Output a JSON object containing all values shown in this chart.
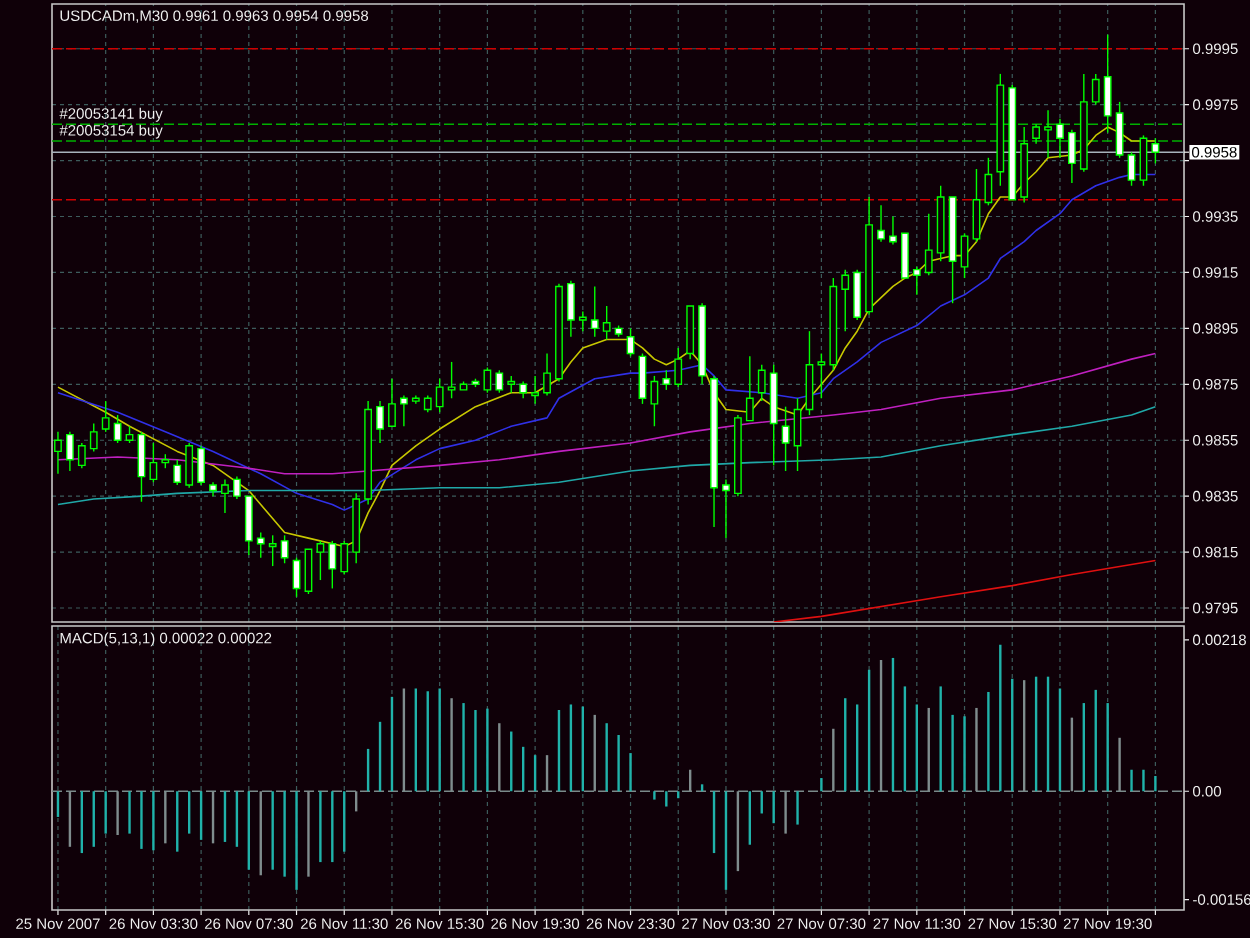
{
  "chart_data": [
    {
      "type": "candlestick",
      "title": "USDCADm,M30  0.9961 0.9963 0.9954 0.9958",
      "color": "#00ff00",
      "x": [
        "2007-11-25T23:30",
        "2007-11-26T00:00",
        "2007-11-26T00:30",
        "2007-11-26T01:00",
        "2007-11-26T01:30",
        "2007-11-26T02:00",
        "2007-11-26T02:30",
        "2007-11-26T03:00",
        "2007-11-26T03:30",
        "2007-11-26T04:00",
        "2007-11-26T04:30",
        "2007-11-26T05:00",
        "2007-11-26T05:30",
        "2007-11-26T06:00",
        "2007-11-26T06:30",
        "2007-11-26T07:00",
        "2007-11-26T07:30",
        "2007-11-26T08:00",
        "2007-11-26T08:30",
        "2007-11-26T09:00",
        "2007-11-26T09:30",
        "2007-11-26T10:00",
        "2007-11-26T10:30",
        "2007-11-26T11:00",
        "2007-11-26T11:30",
        "2007-11-26T12:00",
        "2007-11-26T12:30",
        "2007-11-26T13:00",
        "2007-11-26T13:30",
        "2007-11-26T14:00",
        "2007-11-26T14:30",
        "2007-11-26T15:00",
        "2007-11-26T15:30",
        "2007-11-26T16:00",
        "2007-11-26T16:30",
        "2007-11-26T17:00",
        "2007-11-26T17:30",
        "2007-11-26T18:00",
        "2007-11-26T18:30",
        "2007-11-26T19:00",
        "2007-11-26T19:30",
        "2007-11-26T20:00",
        "2007-11-26T20:30",
        "2007-11-26T21:00",
        "2007-11-26T21:30",
        "2007-11-26T22:00",
        "2007-11-26T22:30",
        "2007-11-26T23:00",
        "2007-11-26T23:30",
        "2007-11-27T00:00",
        "2007-11-27T00:30",
        "2007-11-27T01:00",
        "2007-11-27T01:30",
        "2007-11-27T02:00",
        "2007-11-27T02:30",
        "2007-11-27T03:00",
        "2007-11-27T03:30",
        "2007-11-27T04:00",
        "2007-11-27T04:30",
        "2007-11-27T05:00",
        "2007-11-27T05:30",
        "2007-11-27T06:00",
        "2007-11-27T06:30",
        "2007-11-27T07:00",
        "2007-11-27T07:30",
        "2007-11-27T08:00",
        "2007-11-27T08:30",
        "2007-11-27T09:00",
        "2007-11-27T09:30",
        "2007-11-27T10:00",
        "2007-11-27T10:30",
        "2007-11-27T11:00",
        "2007-11-27T11:30",
        "2007-11-27T12:00",
        "2007-11-27T12:30",
        "2007-11-27T13:00",
        "2007-11-27T13:30",
        "2007-11-27T14:00",
        "2007-11-27T14:30",
        "2007-11-27T15:00",
        "2007-11-27T15:30",
        "2007-11-27T16:00",
        "2007-11-27T16:30",
        "2007-11-27T17:00",
        "2007-11-27T17:30",
        "2007-11-27T18:00",
        "2007-11-27T18:30",
        "2007-11-27T19:00",
        "2007-11-27T19:30",
        "2007-11-27T20:00",
        "2007-11-27T20:30",
        "2007-11-27T21:00",
        "2007-11-27T21:30"
      ],
      "ohlc": [
        [
          0.9851,
          0.9858,
          0.9843,
          0.9855
        ],
        [
          0.9857,
          0.9858,
          0.9844,
          0.9848
        ],
        [
          0.9846,
          0.9854,
          0.9845,
          0.9853
        ],
        [
          0.9852,
          0.9861,
          0.9851,
          0.9858
        ],
        [
          0.9859,
          0.9869,
          0.9858,
          0.9863
        ],
        [
          0.9861,
          0.9864,
          0.9854,
          0.9855
        ],
        [
          0.9855,
          0.986,
          0.9854,
          0.9857
        ],
        [
          0.9857,
          0.9858,
          0.9833,
          0.9842
        ],
        [
          0.9841,
          0.9854,
          0.984,
          0.9847
        ],
        [
          0.9847,
          0.985,
          0.9845,
          0.9848
        ],
        [
          0.9846,
          0.9848,
          0.9839,
          0.984
        ],
        [
          0.9839,
          0.9854,
          0.9838,
          0.9853
        ],
        [
          0.9852,
          0.9853,
          0.9839,
          0.984
        ],
        [
          0.9839,
          0.984,
          0.9835,
          0.9837
        ],
        [
          0.9836,
          0.9841,
          0.9829,
          0.9839
        ],
        [
          0.9841,
          0.9842,
          0.9834,
          0.9835
        ],
        [
          0.9835,
          0.9835,
          0.9814,
          0.9819
        ],
        [
          0.982,
          0.9822,
          0.9813,
          0.9818
        ],
        [
          0.9817,
          0.9821,
          0.981,
          0.9818
        ],
        [
          0.9819,
          0.9821,
          0.9811,
          0.9813
        ],
        [
          0.9812,
          0.9813,
          0.9799,
          0.9802
        ],
        [
          0.9801,
          0.9816,
          0.98,
          0.9816
        ],
        [
          0.9815,
          0.9819,
          0.9805,
          0.9818
        ],
        [
          0.9818,
          0.9819,
          0.9802,
          0.9809
        ],
        [
          0.9808,
          0.9819,
          0.9807,
          0.9818
        ],
        [
          0.9815,
          0.9836,
          0.9811,
          0.9834
        ],
        [
          0.9834,
          0.9869,
          0.9832,
          0.9866
        ],
        [
          0.9867,
          0.9869,
          0.9854,
          0.9859
        ],
        [
          0.986,
          0.9877,
          0.986,
          0.9868
        ],
        [
          0.987,
          0.9871,
          0.986,
          0.9868
        ],
        [
          0.9869,
          0.9871,
          0.9868,
          0.987
        ],
        [
          0.9866,
          0.9871,
          0.9865,
          0.987
        ],
        [
          0.9867,
          0.9877,
          0.9865,
          0.9874
        ],
        [
          0.9873,
          0.9883,
          0.987,
          0.9874
        ],
        [
          0.9873,
          0.9876,
          0.9873,
          0.9875
        ],
        [
          0.9876,
          0.9877,
          0.9874,
          0.9875
        ],
        [
          0.9873,
          0.9881,
          0.9872,
          0.988
        ],
        [
          0.9879,
          0.988,
          0.9872,
          0.9873
        ],
        [
          0.9875,
          0.9878,
          0.9872,
          0.9876
        ],
        [
          0.9875,
          0.9876,
          0.987,
          0.9872
        ],
        [
          0.9871,
          0.9878,
          0.9868,
          0.9872
        ],
        [
          0.9872,
          0.9886,
          0.9871,
          0.9879
        ],
        [
          0.9877,
          0.9911,
          0.9876,
          0.991
        ],
        [
          0.9911,
          0.9912,
          0.9892,
          0.9898
        ],
        [
          0.9898,
          0.9901,
          0.9894,
          0.9899
        ],
        [
          0.9898,
          0.991,
          0.9892,
          0.9895
        ],
        [
          0.9894,
          0.9903,
          0.9891,
          0.9897
        ],
        [
          0.9895,
          0.9896,
          0.9892,
          0.9893
        ],
        [
          0.9892,
          0.9895,
          0.9885,
          0.9886
        ],
        [
          0.9885,
          0.9886,
          0.9868,
          0.987
        ],
        [
          0.9868,
          0.9878,
          0.986,
          0.9876
        ],
        [
          0.9877,
          0.988,
          0.9873,
          0.9875
        ],
        [
          0.9875,
          0.9888,
          0.9874,
          0.9884
        ],
        [
          0.9886,
          0.9903,
          0.9884,
          0.9903
        ],
        [
          0.9903,
          0.9904,
          0.9875,
          0.9878
        ],
        [
          0.9877,
          0.9878,
          0.9824,
          0.9838
        ],
        [
          0.9839,
          0.9841,
          0.982,
          0.9837
        ],
        [
          0.9836,
          0.9864,
          0.9835,
          0.9863
        ],
        [
          0.9862,
          0.9885,
          0.9862,
          0.987
        ],
        [
          0.9872,
          0.9882,
          0.9869,
          0.988
        ],
        [
          0.9879,
          0.9882,
          0.9846,
          0.9861
        ],
        [
          0.986,
          0.9867,
          0.9844,
          0.9854
        ],
        [
          0.9853,
          0.987,
          0.9844,
          0.9866
        ],
        [
          0.9866,
          0.9894,
          0.9864,
          0.9882
        ],
        [
          0.9882,
          0.9886,
          0.987,
          0.9883
        ],
        [
          0.9882,
          0.9913,
          0.988,
          0.991
        ],
        [
          0.9909,
          0.9916,
          0.9894,
          0.9914
        ],
        [
          0.9915,
          0.9916,
          0.9898,
          0.9899
        ],
        [
          0.9901,
          0.9942,
          0.99,
          0.9932
        ],
        [
          0.993,
          0.9939,
          0.9926,
          0.9927
        ],
        [
          0.9928,
          0.9935,
          0.9925,
          0.9926
        ],
        [
          0.9929,
          0.9929,
          0.9913,
          0.9913
        ],
        [
          0.9916,
          0.9917,
          0.9907,
          0.9914
        ],
        [
          0.9915,
          0.9936,
          0.9914,
          0.9923
        ],
        [
          0.9922,
          0.9946,
          0.9919,
          0.9942
        ],
        [
          0.9942,
          0.9942,
          0.9904,
          0.9919
        ],
        [
          0.9917,
          0.9929,
          0.9913,
          0.9928
        ],
        [
          0.9927,
          0.9952,
          0.9926,
          0.9941
        ],
        [
          0.994,
          0.9956,
          0.9939,
          0.995
        ],
        [
          0.9951,
          0.9986,
          0.9946,
          0.9982
        ],
        [
          0.9981,
          0.9982,
          0.9941,
          0.9941
        ],
        [
          0.9942,
          0.9967,
          0.994,
          0.9961
        ],
        [
          0.9963,
          0.9968,
          0.9961,
          0.9967
        ],
        [
          0.9966,
          0.9973,
          0.9956,
          0.9967
        ],
        [
          0.9968,
          0.997,
          0.9956,
          0.9963
        ],
        [
          0.9965,
          0.9966,
          0.9947,
          0.9954
        ],
        [
          0.9952,
          0.9986,
          0.9951,
          0.9976
        ],
        [
          0.9976,
          0.9986,
          0.9975,
          0.9984
        ],
        [
          0.9985,
          1.0,
          0.9965,
          0.9971
        ],
        [
          0.9972,
          0.9976,
          0.9956,
          0.9957
        ],
        [
          0.9957,
          0.9958,
          0.9946,
          0.9948
        ],
        [
          0.9948,
          0.9964,
          0.9946,
          0.9963
        ],
        [
          0.9961,
          0.9963,
          0.9954,
          0.9958
        ]
      ],
      "series": [
        {
          "type": "line",
          "color": "#c8c800",
          "x": [
            "2007-11-25T23:30",
            "2007-11-26T01:30",
            "2007-11-26T02:30",
            "2007-11-26T04:30",
            "2007-11-26T06:00",
            "2007-11-26T07:30",
            "2007-11-26T08:30",
            "2007-11-26T09:00",
            "2007-11-26T10:00",
            "2007-11-26T11:30",
            "2007-11-26T12:00",
            "2007-11-26T12:30",
            "2007-11-26T13:00",
            "2007-11-26T13:30",
            "2007-11-26T14:30",
            "2007-11-26T15:30",
            "2007-11-26T17:00",
            "2007-11-26T18:30",
            "2007-11-26T19:30",
            "2007-11-26T20:30",
            "2007-11-26T21:00",
            "2007-11-26T21:30",
            "2007-11-26T22:30",
            "2007-11-26T23:30",
            "2007-11-27T00:00",
            "2007-11-27T00:30",
            "2007-11-27T01:00",
            "2007-11-27T01:30",
            "2007-11-27T02:00",
            "2007-11-27T02:30",
            "2007-11-27T03:00",
            "2007-11-27T03:30",
            "2007-11-27T04:30",
            "2007-11-27T05:00",
            "2007-11-27T05:30",
            "2007-11-27T06:30",
            "2007-11-27T07:00",
            "2007-11-27T08:00",
            "2007-11-27T08:30",
            "2007-11-27T09:00",
            "2007-11-27T09:30",
            "2007-11-27T10:30",
            "2007-11-27T11:00",
            "2007-11-27T11:30",
            "2007-11-27T12:00",
            "2007-11-27T13:00",
            "2007-11-27T13:30",
            "2007-11-27T14:00",
            "2007-11-27T14:30",
            "2007-11-27T15:00",
            "2007-11-27T15:30",
            "2007-11-27T16:00",
            "2007-11-27T16:30",
            "2007-11-27T17:00",
            "2007-11-27T18:00",
            "2007-11-27T18:30",
            "2007-11-27T19:00",
            "2007-11-27T19:30",
            "2007-11-27T20:00",
            "2007-11-27T20:30",
            "2007-11-27T21:00",
            "2007-11-27T21:30"
          ],
          "values": [
            0.9874,
            0.9865,
            0.986,
            0.9851,
            0.9846,
            0.9837,
            0.9827,
            0.9822,
            0.982,
            0.9817,
            0.9819,
            0.9829,
            0.9837,
            0.9846,
            0.9853,
            0.9859,
            0.9867,
            0.9872,
            0.9872,
            0.9877,
            0.9883,
            0.9888,
            0.9891,
            0.9891,
            0.9888,
            0.9884,
            0.9882,
            0.9884,
            0.9887,
            0.9882,
            0.9872,
            0.9866,
            0.9865,
            0.987,
            0.9867,
            0.9864,
            0.987,
            0.988,
            0.9888,
            0.9894,
            0.9902,
            0.991,
            0.9913,
            0.9915,
            0.9919,
            0.9921,
            0.9921,
            0.9926,
            0.9936,
            0.9942,
            0.9942,
            0.9947,
            0.9951,
            0.9956,
            0.9957,
            0.9959,
            0.9964,
            0.9967,
            0.9965,
            0.9962,
            0.9962,
            0.9962
          ]
        },
        {
          "type": "line",
          "color": "#3030e8",
          "x": [
            "2007-11-25T23:30",
            "2007-11-26T02:00",
            "2007-11-26T04:00",
            "2007-11-26T06:00",
            "2007-11-26T08:00",
            "2007-11-26T09:30",
            "2007-11-26T11:00",
            "2007-11-26T11:30",
            "2007-11-26T12:30",
            "2007-11-26T13:00",
            "2007-11-26T14:30",
            "2007-11-26T15:30",
            "2007-11-26T17:00",
            "2007-11-26T18:30",
            "2007-11-26T20:00",
            "2007-11-26T20:30",
            "2007-11-26T22:00",
            "2007-11-26T23:30",
            "2007-11-27T00:00",
            "2007-11-27T01:30",
            "2007-11-27T02:30",
            "2007-11-27T03:00",
            "2007-11-27T03:30",
            "2007-11-27T05:00",
            "2007-11-27T06:30",
            "2007-11-27T07:30",
            "2007-11-27T08:00",
            "2007-11-27T09:00",
            "2007-11-27T10:00",
            "2007-11-27T11:30",
            "2007-11-27T12:30",
            "2007-11-27T13:30",
            "2007-11-27T14:30",
            "2007-11-27T15:00",
            "2007-11-27T16:00",
            "2007-11-27T16:30",
            "2007-11-27T17:30",
            "2007-11-27T18:00",
            "2007-11-27T19:00",
            "2007-11-27T20:00",
            "2007-11-27T20:30",
            "2007-11-27T21:30"
          ],
          "values": [
            0.9872,
            0.9865,
            0.9858,
            0.9851,
            0.9843,
            0.9836,
            0.9832,
            0.983,
            0.9834,
            0.984,
            0.9848,
            0.9852,
            0.9855,
            0.986,
            0.9863,
            0.987,
            0.9877,
            0.9879,
            0.9879,
            0.988,
            0.9882,
            0.9878,
            0.9873,
            0.9872,
            0.987,
            0.9872,
            0.9877,
            0.9883,
            0.989,
            0.9896,
            0.9903,
            0.9907,
            0.9913,
            0.992,
            0.9926,
            0.993,
            0.9936,
            0.9941,
            0.9946,
            0.9949,
            0.995,
            0.995
          ]
        },
        {
          "type": "line",
          "color": "#c020c0",
          "x": [
            "2007-11-25T23:30",
            "2007-11-26T02:00",
            "2007-11-26T04:30",
            "2007-11-26T07:30",
            "2007-11-26T09:00",
            "2007-11-26T11:00",
            "2007-11-26T12:30",
            "2007-11-26T15:30",
            "2007-11-26T18:00",
            "2007-11-26T20:30",
            "2007-11-26T23:30",
            "2007-11-27T02:00",
            "2007-11-27T04:30",
            "2007-11-27T08:00",
            "2007-11-27T10:00",
            "2007-11-27T12:30",
            "2007-11-27T15:30",
            "2007-11-27T18:00",
            "2007-11-27T20:30",
            "2007-11-27T21:30"
          ],
          "values": [
            0.9848,
            0.9849,
            0.9848,
            0.9845,
            0.9843,
            0.9843,
            0.9844,
            0.9846,
            0.9848,
            0.9851,
            0.9854,
            0.9858,
            0.9861,
            0.9864,
            0.9866,
            0.987,
            0.9873,
            0.9878,
            0.9884,
            0.9886
          ]
        },
        {
          "type": "line",
          "color": "#20a8a8",
          "x": [
            "2007-11-25T23:30",
            "2007-11-26T01:00",
            "2007-11-26T03:00",
            "2007-11-26T04:30",
            "2007-11-26T07:30",
            "2007-11-26T12:30",
            "2007-11-26T15:30",
            "2007-11-26T18:00",
            "2007-11-26T20:30",
            "2007-11-26T23:30",
            "2007-11-27T02:00",
            "2007-11-27T04:30",
            "2007-11-27T08:00",
            "2007-11-27T10:00",
            "2007-11-27T12:30",
            "2007-11-27T15:30",
            "2007-11-27T18:00",
            "2007-11-27T20:30",
            "2007-11-27T21:30"
          ],
          "values": [
            0.9832,
            0.9834,
            0.9835,
            0.9836,
            0.9837,
            0.9837,
            0.9838,
            0.9838,
            0.984,
            0.9844,
            0.9846,
            0.9847,
            0.9848,
            0.9849,
            0.9853,
            0.9857,
            0.986,
            0.9864,
            0.9867
          ]
        },
        {
          "type": "line",
          "color": "#e01010",
          "x": [
            "2007-11-27T05:30",
            "2007-11-27T07:30",
            "2007-11-27T12:30",
            "2007-11-27T15:30",
            "2007-11-27T18:00",
            "2007-11-27T21:30"
          ],
          "values": [
            0.979,
            0.9792,
            0.9799,
            0.9803,
            0.9807,
            0.9812
          ]
        }
      ],
      "xlim": [
        "2007-11-25T23:15",
        "2007-11-27T22:42"
      ],
      "xticks": [
        "2007-11-26T01:30",
        "2007-11-26T03:30",
        "2007-11-26T05:30",
        "2007-11-26T07:30",
        "2007-11-26T09:30",
        "2007-11-26T11:30",
        "2007-11-26T13:30",
        "2007-11-26T15:30",
        "2007-11-26T17:30",
        "2007-11-26T19:30",
        "2007-11-26T21:30",
        "2007-11-26T23:30",
        "2007-11-27T01:30",
        "2007-11-27T03:30",
        "2007-11-27T05:30",
        "2007-11-27T07:30",
        "2007-11-27T09:30",
        "2007-11-27T11:30",
        "2007-11-27T13:30",
        "2007-11-27T15:30",
        "2007-11-27T17:30",
        "2007-11-27T19:30",
        "2007-11-27T21:30"
      ],
      "ylim": [
        0.979,
        1.0011
      ],
      "yticks": [
        0.9795,
        0.9815,
        0.9835,
        0.9855,
        0.9875,
        0.9895,
        0.9915,
        0.9935,
        {
          "value": 0.9955,
          "label": null
        },
        0.9958,
        0.9975,
        0.9995
      ],
      "tick_labels": "y",
      "grid": true,
      "ref_lines": [
        {
          "axis": "y",
          "value": 0.9995,
          "color": "#d00000",
          "line_style": "dashed"
        },
        {
          "axis": "y",
          "value": 0.9968,
          "label": "#20053141 buy",
          "color": "#00b000",
          "line_style": "dashed"
        },
        {
          "axis": "y",
          "value": 0.9962,
          "label": "#20053154 buy",
          "color": "#00b000",
          "line_style": "dashed"
        },
        {
          "axis": "y",
          "value": 0.9958,
          "color": "#a8b2bc",
          "line_style": "solid"
        },
        {
          "axis": "y",
          "value": 0.9941,
          "color": "#d00000",
          "line_style": "dashed"
        }
      ]
    },
    {
      "type": "bar",
      "title": "MACD(5,13,1) 0.00022 0.00022",
      "x": [
        "2007-11-25T23:30",
        "2007-11-26T00:00",
        "2007-11-26T00:30",
        "2007-11-26T01:00",
        "2007-11-26T01:30",
        "2007-11-26T02:00",
        "2007-11-26T02:30",
        "2007-11-26T03:00",
        "2007-11-26T03:30",
        "2007-11-26T04:00",
        "2007-11-26T04:30",
        "2007-11-26T05:00",
        "2007-11-26T05:30",
        "2007-11-26T06:00",
        "2007-11-26T06:30",
        "2007-11-26T07:00",
        "2007-11-26T07:30",
        "2007-11-26T08:00",
        "2007-11-26T08:30",
        "2007-11-26T09:00",
        "2007-11-26T09:30",
        "2007-11-26T10:00",
        "2007-11-26T10:30",
        "2007-11-26T11:00",
        "2007-11-26T11:30",
        "2007-11-26T12:00",
        "2007-11-26T12:30",
        "2007-11-26T13:00",
        "2007-11-26T13:30",
        "2007-11-26T14:00",
        "2007-11-26T14:30",
        "2007-11-26T15:00",
        "2007-11-26T15:30",
        "2007-11-26T16:00",
        "2007-11-26T16:30",
        "2007-11-26T17:00",
        "2007-11-26T17:30",
        "2007-11-26T18:00",
        "2007-11-26T18:30",
        "2007-11-26T19:00",
        "2007-11-26T19:30",
        "2007-11-26T20:00",
        "2007-11-26T20:30",
        "2007-11-26T21:00",
        "2007-11-26T21:30",
        "2007-11-26T22:00",
        "2007-11-26T22:30",
        "2007-11-26T23:00",
        "2007-11-26T23:30",
        "2007-11-27T00:00",
        "2007-11-27T00:30",
        "2007-11-27T01:00",
        "2007-11-27T01:30",
        "2007-11-27T02:00",
        "2007-11-27T02:30",
        "2007-11-27T03:00",
        "2007-11-27T03:30",
        "2007-11-27T04:00",
        "2007-11-27T04:30",
        "2007-11-27T05:00",
        "2007-11-27T05:30",
        "2007-11-27T06:00",
        "2007-11-27T06:30",
        "2007-11-27T07:00",
        "2007-11-27T07:30",
        "2007-11-27T08:00",
        "2007-11-27T08:30",
        "2007-11-27T09:00",
        "2007-11-27T09:30",
        "2007-11-27T10:00",
        "2007-11-27T10:30",
        "2007-11-27T11:00",
        "2007-11-27T11:30",
        "2007-11-27T12:00",
        "2007-11-27T12:30",
        "2007-11-27T13:00",
        "2007-11-27T13:30",
        "2007-11-27T14:00",
        "2007-11-27T14:30",
        "2007-11-27T15:00",
        "2007-11-27T15:30",
        "2007-11-27T16:00",
        "2007-11-27T16:30",
        "2007-11-27T17:00",
        "2007-11-27T17:30",
        "2007-11-27T18:00",
        "2007-11-27T18:30",
        "2007-11-27T19:00",
        "2007-11-27T19:30",
        "2007-11-27T20:00",
        "2007-11-27T20:30",
        "2007-11-27T21:00",
        "2007-11-27T21:30"
      ],
      "values": [
        -0.00037,
        -0.0008,
        -0.00089,
        -0.0008,
        -0.00061,
        -0.00063,
        -0.00061,
        -0.00083,
        -0.00085,
        -0.00075,
        -0.00087,
        -0.00061,
        -0.0007,
        -0.00075,
        -0.00073,
        -0.0008,
        -0.00113,
        -0.00121,
        -0.00113,
        -0.00123,
        -0.00142,
        -0.00123,
        -0.00102,
        -0.00102,
        -0.00087,
        -0.00029,
        0.00061,
        0.001,
        0.00136,
        0.00148,
        0.00148,
        0.00144,
        0.00148,
        0.00134,
        0.00127,
        0.00117,
        0.00119,
        0.00098,
        0.00086,
        0.00064,
        0.00052,
        0.00052,
        0.00117,
        0.00125,
        0.00122,
        0.0011,
        0.00098,
        0.00081,
        0.00055,
        null,
        -0.00012,
        -0.00022,
        -0.0001,
        0.00031,
        0.0001,
        -0.00089,
        -0.00142,
        -0.00115,
        -0.00077,
        -0.00032,
        -0.00046,
        -0.00061,
        -0.00048,
        null,
        0.00019,
        0.0009,
        0.00134,
        0.00125,
        0.00175,
        0.00189,
        0.00192,
        0.00151,
        0.00125,
        0.0012,
        0.00151,
        0.0011,
        0.00108,
        0.0012,
        0.00143,
        0.00211,
        0.00162,
        0.0016,
        0.00165,
        0.00165,
        0.00148,
        0.00106,
        0.00127,
        0.00146,
        0.00127,
        0.00077,
        0.00031,
        0.00031,
        0.00022
      ],
      "colors": [
        "#20b2aa",
        "#7f8c8d",
        "#20b2aa",
        "#20b2aa",
        "#20b2aa",
        "#7f8c8d",
        "#20b2aa",
        "#20b2aa",
        "#20b2aa",
        "#7f8c8d",
        "#20b2aa",
        "#20b2aa",
        "#20b2aa",
        "#7f8c8d",
        "#20b2aa",
        "#20b2aa",
        "#20b2aa",
        "#7f8c8d",
        "#20b2aa",
        "#20b2aa",
        "#20b2aa",
        "#7f8c8d",
        "#20b2aa",
        "#20b2aa",
        "#20b2aa",
        "#7f8c8d",
        "#20b2aa",
        "#20b2aa",
        "#20b2aa",
        "#7f8c8d",
        "#20b2aa",
        "#20b2aa",
        "#20b2aa",
        "#7f8c8d",
        "#20b2aa",
        "#20b2aa",
        "#20b2aa",
        "#7f8c8d",
        "#20b2aa",
        "#20b2aa",
        "#20b2aa",
        "#7f8c8d",
        "#20b2aa",
        "#20b2aa",
        "#20b2aa",
        "#7f8c8d",
        "#20b2aa",
        "#20b2aa",
        "#20b2aa",
        "#7f8c8d",
        "#20b2aa",
        "#20b2aa",
        "#20b2aa",
        "#7f8c8d",
        "#20b2aa",
        "#20b2aa",
        "#20b2aa",
        "#7f8c8d",
        "#20b2aa",
        "#20b2aa",
        "#20b2aa",
        "#7f8c8d",
        "#20b2aa",
        "#20b2aa",
        "#20b2aa",
        "#7f8c8d",
        "#20b2aa",
        "#20b2aa",
        "#20b2aa",
        "#7f8c8d",
        "#20b2aa",
        "#20b2aa",
        "#20b2aa",
        "#7f8c8d",
        "#20b2aa",
        "#20b2aa",
        "#20b2aa",
        "#7f8c8d",
        "#20b2aa",
        "#20b2aa",
        "#20b2aa",
        "#7f8c8d",
        "#20b2aa",
        "#20b2aa",
        "#20b2aa",
        "#7f8c8d",
        "#20b2aa",
        "#20b2aa",
        "#20b2aa",
        "#7f8c8d",
        "#20b2aa",
        "#20b2aa",
        "#20b2aa"
      ],
      "xlim": [
        "2007-11-25T23:15",
        "2007-11-27T22:42"
      ],
      "xticks": [
        {
          "value": "2007-11-25T23:30",
          "label": "25 Nov 2007"
        },
        {
          "value": "2007-11-26T01:30",
          "label": null
        },
        {
          "value": "2007-11-26T03:30",
          "label": "26 Nov 03:30"
        },
        {
          "value": "2007-11-26T05:30",
          "label": null
        },
        {
          "value": "2007-11-26T07:30",
          "label": "26 Nov 07:30"
        },
        {
          "value": "2007-11-26T09:30",
          "label": null
        },
        {
          "value": "2007-11-26T11:30",
          "label": "26 Nov 11:30"
        },
        {
          "value": "2007-11-26T13:30",
          "label": null
        },
        {
          "value": "2007-11-26T15:30",
          "label": "26 Nov 15:30"
        },
        {
          "value": "2007-11-26T17:30",
          "label": null
        },
        {
          "value": "2007-11-26T19:30",
          "label": "26 Nov 19:30"
        },
        {
          "value": "2007-11-26T21:30",
          "label": null
        },
        {
          "value": "2007-11-26T23:30",
          "label": "26 Nov 23:30"
        },
        {
          "value": "2007-11-27T01:30",
          "label": null
        },
        {
          "value": "2007-11-27T03:30",
          "label": "27 Nov 03:30"
        },
        {
          "value": "2007-11-27T05:30",
          "label": null
        },
        {
          "value": "2007-11-27T07:30",
          "label": "27 Nov 07:30"
        },
        {
          "value": "2007-11-27T09:30",
          "label": null
        },
        {
          "value": "2007-11-27T11:30",
          "label": "27 Nov 11:30"
        },
        {
          "value": "2007-11-27T13:30",
          "label": null
        },
        {
          "value": "2007-11-27T15:30",
          "label": "27 Nov 15:30"
        },
        {
          "value": "2007-11-27T17:30",
          "label": null
        },
        {
          "value": "2007-11-27T19:30",
          "label": "27 Nov 19:30"
        },
        {
          "value": "2007-11-27T21:30",
          "label": null
        }
      ],
      "ylim": [
        -0.00171,
        0.00238
      ],
      "yticks": [
        -0.00156,
        {
          "value": 0,
          "label": "0.00"
        },
        0.00218
      ],
      "grid": "x",
      "ref_lines": [
        {
          "axis": "y",
          "value": 0,
          "color": "#7a8a8a",
          "line_style": "dashed"
        }
      ]
    }
  ]
}
